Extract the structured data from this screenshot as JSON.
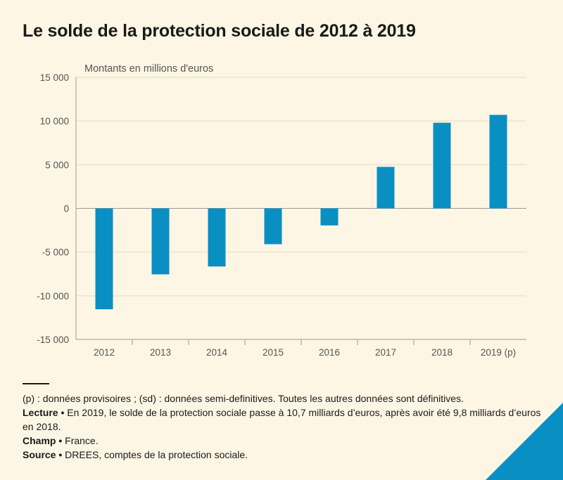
{
  "title": "Le solde de la protection sociale de 2012 à 2019",
  "chart_data": {
    "type": "bar",
    "units_label": "Montants en millions d'euros",
    "categories": [
      "2012",
      "2013",
      "2014",
      "2015",
      "2016",
      "2017",
      "2018",
      "2019 (p)"
    ],
    "values": [
      -11550,
      -7550,
      -6650,
      -4100,
      -1950,
      4750,
      9800,
      10700
    ],
    "ylim": [
      -15000,
      15000
    ],
    "yticks": [
      15000,
      10000,
      5000,
      0,
      -5000,
      -10000,
      -15000
    ],
    "ytick_labels": [
      "15 000",
      "10 000",
      "5 000",
      "0",
      "-5 000",
      "-10 000",
      "-15 000"
    ],
    "grid": true,
    "bar_color": "#0a8fc2",
    "grid_color": "#e7dcc1"
  },
  "footer": {
    "note": "(p) : données provisoires ; (sd) : données semi-definitives. Toutes les autres données sont définitives.",
    "lecture_label": "Lecture •",
    "lecture_text": "En 2019, le solde de la protection sociale passe  à 10,7 milliards d’euros, après avoir été 9,8 milliards d’euros en 2018.",
    "champ_label": "Champ •",
    "champ_text": "France.",
    "source_label": "Source •",
    "source_text": "DREES, comptes de la protection sociale."
  },
  "corner_color": "#0a8fc2"
}
